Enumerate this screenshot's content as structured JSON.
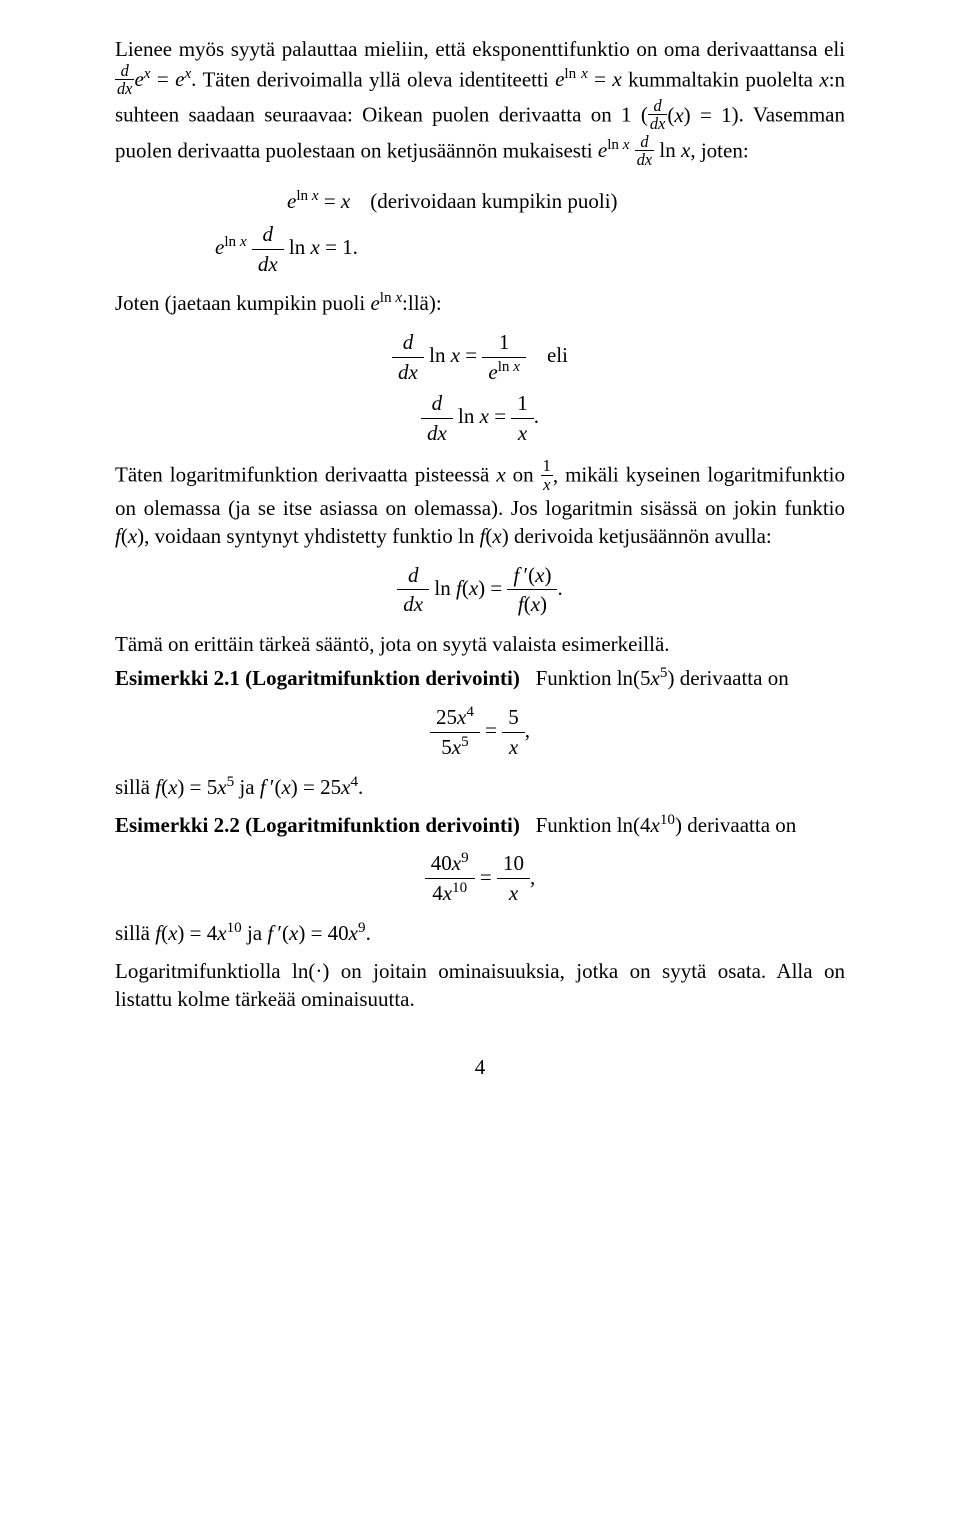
{
  "para1_prefix": "Lienee myös syytä palauttaa mieliin, että eksponenttifunktio on oma derivaattansa eli ",
  "para1_math1": "<span class='frac'><span class='num'><span class=\"math-var\">d</span></span><span class='den'><span class=\"math-var\">dx</span></span></span><span class=\"math-var\">e</span><span class='sup'><span class=\"math-var\">x</span></span> = <span class=\"math-var\">e</span><span class='sup'><span class=\"math-var\">x</span></span>. ",
  "para1_mid": "Täten derivoimalla yllä oleva identiteetti ",
  "para1_math2": "<span class=\"math-var\">e</span><span class='sup'>ln <span class=\"math-var\">x</span></span> = <span class=\"math-var\">x</span> ",
  "para1_after": "kummaltakin puolelta ",
  "para1_xn": "<span class=\"math-var\">x</span>:n ",
  "para1_tail": "suhteen saadaan seuraavaa: Oikean puolen derivaatta on 1 (",
  "para1_math3": "<span class='frac'><span class='num'><span class=\"math-var\">d</span></span><span class='den'><span class=\"math-var\">dx</span></span></span>(<span class=\"math-var\">x</span>) = 1",
  "para1_end": "). Vasemman puolen derivaatta puolestaan on ketjusäännön mukaisesti ",
  "para1_math4": "<span class=\"math-var\">e</span><span class='sup'>ln <span class=\"math-var\">x</span></span> <span class='frac'><span class='num'><span class=\"math-var\">d</span></span><span class='den'><span class=\"math-var\">dx</span></span></span> ln <span class=\"math-var\">x</span>, ",
  "para1_joten": "joten:",
  "disp1_line1": "<span class=\"math-var\">e</span><span class='sup'>ln <span class=\"math-var\">x</span></span> = <span class=\"math-var\">x</span><span class='comment'>(derivoidaan kumpikin puoli)</span>",
  "disp1_line2": "<span class=\"math-var\">e</span><span class='sup'>ln <span class=\"math-var\">x</span></span> <span class='dfrac'><span class='num'><span class=\"math-var\">d</span></span><span class='den'><span class=\"math-var\">dx</span></span></span> ln <span class=\"math-var\">x</span> = 1.",
  "para2_prefix": "Joten (jaetaan kumpikin puoli ",
  "para2_math": "<span class=\"math-var\">e</span><span class='sup'>ln <span class=\"math-var\">x</span></span>:llä):",
  "disp2_line1": "<span class='dfrac'><span class='num'><span class=\"math-var\">d</span></span><span class='den'><span class=\"math-var\">dx</span></span></span> ln <span class=\"math-var\">x</span> = <span class='dfrac'><span class='num'>1</span><span class='den'><span class=\"math-var\">e</span><span class='sup'>ln <span class=\"math-var\">x</span></span></span></span>&nbsp;&nbsp;&nbsp;&nbsp;eli",
  "disp2_line2": "<span class='dfrac'><span class='num'><span class=\"math-var\">d</span></span><span class='den'><span class=\"math-var\">dx</span></span></span> ln <span class=\"math-var\">x</span> = <span class='dfrac'><span class='num'>1</span><span class='den'><span class=\"math-var\">x</span></span></span>.",
  "para3_prefix": "Täten logaritmifunktion derivaatta pisteessä ",
  "para3_x": "<span class=\"math-var\">x</span> on ",
  "para3_frac": "<span class='frac'><span class='num'>1</span><span class='den'><span class=\"math-var\">x</span></span></span>, ",
  "para3_mid": "mikäli kyseinen logaritmifunktio on olemassa (ja se itse asiassa on olemassa). Jos logaritmin sisässä on jokin funktio ",
  "para3_fx": "<span class=\"math-var\">f</span>(<span class=\"math-var\">x</span>), ",
  "para3_mid2": "voidaan syntynyt yhdistetty funktio ",
  "para3_lnfx": "ln <span class=\"math-var\">f</span>(<span class=\"math-var\">x</span>) ",
  "para3_tail": "derivoida ketjusäännön avulla:",
  "disp3": "<span class='dfrac'><span class='num'><span class=\"math-var\">d</span></span><span class='den'><span class=\"math-var\">dx</span></span></span> ln <span class=\"math-var\">f</span>(<span class=\"math-var\">x</span>) = <span class='dfrac'><span class='num'><span class=\"math-var\">f&thinsp;</span>&prime;(<span class=\"math-var\">x</span>)</span><span class='den'><span class=\"math-var\">f</span>(<span class=\"math-var\">x</span>)</span></span>.",
  "para4": "Tämä on erittäin tärkeä sääntö, jota on syytä valaista esimerkeillä.",
  "ex1_title": "Esimerkki 2.1 (Logaritmifunktion derivointi)",
  "ex1_lead_a": "Funktion ",
  "ex1_lead_b": "ln(5<span class=\"math-var\">x</span><span class='sup'>5</span>) ",
  "ex1_lead_c": "derivaatta on",
  "ex1_disp": "<span class='dfrac'><span class='num'>25<span class=\"math-var\">x</span><span class='sup'>4</span></span><span class='den'>5<span class=\"math-var\">x</span><span class='sup'>5</span></span></span> = <span class='dfrac'><span class='num'>5</span><span class='den'><span class=\"math-var\">x</span></span></span>,",
  "ex1_tail_a": "sillä ",
  "ex1_tail_b": "<span class=\"math-var\">f</span>(<span class=\"math-var\">x</span>) = 5<span class=\"math-var\">x</span><span class='sup'>5</span> ",
  "ex1_tail_c": "ja ",
  "ex1_tail_d": "<span class=\"math-var\">f&thinsp;</span>&prime;(<span class=\"math-var\">x</span>) = 25<span class=\"math-var\">x</span><span class='sup'>4</span>.",
  "ex2_title": "Esimerkki 2.2 (Logaritmifunktion derivointi)",
  "ex2_lead_a": "Funktion ",
  "ex2_lead_b": "ln(4<span class=\"math-var\">x</span><span class='sup'>10</span>) ",
  "ex2_lead_c": "derivaatta on",
  "ex2_disp": "<span class='dfrac'><span class='num'>40<span class=\"math-var\">x</span><span class='sup'>9</span></span><span class='den'>4<span class=\"math-var\">x</span><span class='sup'>10</span></span></span> = <span class='dfrac'><span class='num'>10</span><span class='den'><span class=\"math-var\">x</span></span></span>,",
  "ex2_tail_a": "sillä ",
  "ex2_tail_b": "<span class=\"math-var\">f</span>(<span class=\"math-var\">x</span>) = 4<span class=\"math-var\">x</span><span class='sup'>10</span> ",
  "ex2_tail_c": "ja ",
  "ex2_tail_d": "<span class=\"math-var\">f&thinsp;</span>&prime;(<span class=\"math-var\">x</span>) = 40<span class=\"math-var\">x</span><span class='sup'>9</span>.",
  "para5": "Logaritmifunktiolla ln(·) on joitain ominaisuuksia, jotka on syytä osata. Alla on listattu kolme tärkeää ominaisuutta.",
  "pageno": "4"
}
